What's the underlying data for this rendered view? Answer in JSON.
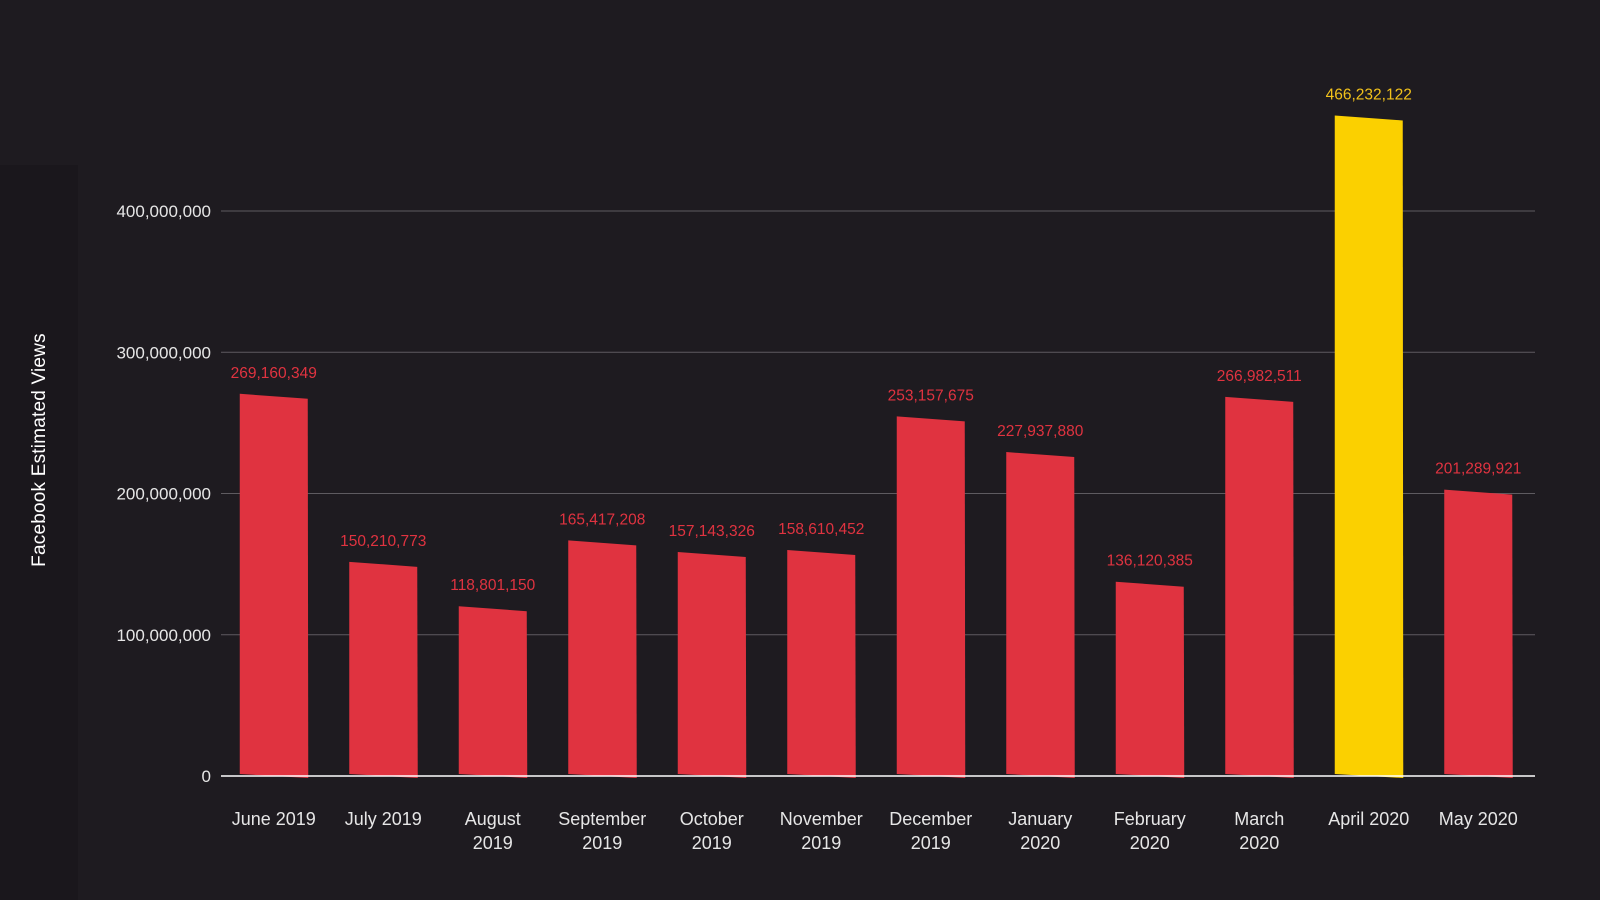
{
  "chart_data": {
    "type": "bar",
    "title": "",
    "xlabel": "",
    "ylabel": "Facebook Estimated Views",
    "categories": [
      [
        "June 2019"
      ],
      [
        "July 2019"
      ],
      [
        "August",
        "2019"
      ],
      [
        "September",
        "2019"
      ],
      [
        "October",
        "2019"
      ],
      [
        "November",
        "2019"
      ],
      [
        "December",
        "2019"
      ],
      [
        "January",
        "2020"
      ],
      [
        "February",
        "2020"
      ],
      [
        "March",
        "2020"
      ],
      [
        "April 2020"
      ],
      [
        "May 2020"
      ]
    ],
    "values": [
      269160349,
      150210773,
      118801150,
      165417208,
      157143326,
      158610452,
      253157675,
      227937880,
      136120385,
      266982511,
      466232122,
      201289921
    ],
    "value_labels": [
      "269,160,349",
      "150,210,773",
      "118,801,150",
      "165,417,208",
      "157,143,326",
      "158,610,452",
      "253,157,675",
      "227,937,880",
      "136,120,385",
      "266,982,511",
      "466,232,122",
      "201,289,921"
    ],
    "ylim": [
      0,
      400000000
    ],
    "yticks": [
      0,
      100000000,
      200000000,
      300000000,
      400000000
    ],
    "ytick_labels": [
      "0",
      "100,000,000",
      "200,000,000",
      "300,000,000",
      "400,000,000"
    ],
    "grid": true,
    "highlight_index": 10,
    "colors": {
      "bar": "#e03340",
      "highlight": "#fbd000",
      "value_label": "#e03340",
      "highlight_label": "#f2c21b",
      "grid": "#5e5b60",
      "baseline": "#ffffff"
    }
  }
}
